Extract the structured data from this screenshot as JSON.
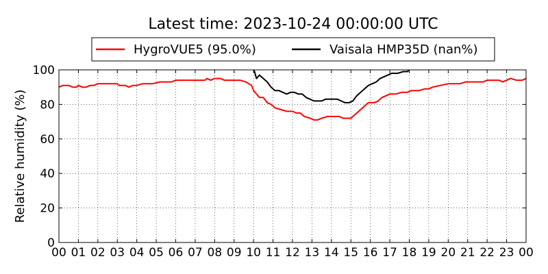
{
  "chart_data": {
    "type": "line",
    "title": "Latest time: 2023-10-24 00:00:00 UTC",
    "xlabel": "",
    "ylabel": "Relative humidity (%)",
    "xlim": [
      0,
      24
    ],
    "ylim": [
      0,
      100
    ],
    "x_ticks": [
      "00",
      "01",
      "02",
      "03",
      "04",
      "05",
      "06",
      "07",
      "08",
      "09",
      "10",
      "11",
      "12",
      "13",
      "14",
      "15",
      "16",
      "17",
      "18",
      "19",
      "20",
      "21",
      "22",
      "23",
      "00"
    ],
    "y_ticks": [
      0,
      20,
      40,
      60,
      80,
      100
    ],
    "grid": true,
    "legend_position": "top",
    "series": [
      {
        "name": "HygroVUE5 (95.0%)",
        "color": "#ff0000",
        "points": [
          [
            0.0,
            90
          ],
          [
            0.2,
            91
          ],
          [
            0.5,
            91
          ],
          [
            0.7,
            90
          ],
          [
            0.9,
            90
          ],
          [
            1.0,
            91
          ],
          [
            1.2,
            90
          ],
          [
            1.4,
            90
          ],
          [
            1.6,
            91
          ],
          [
            1.8,
            91
          ],
          [
            2.0,
            92
          ],
          [
            2.5,
            92
          ],
          [
            3.0,
            92
          ],
          [
            3.1,
            91
          ],
          [
            3.4,
            91
          ],
          [
            3.6,
            90
          ],
          [
            3.8,
            91
          ],
          [
            4.0,
            91
          ],
          [
            4.3,
            92
          ],
          [
            4.8,
            92
          ],
          [
            5.2,
            93
          ],
          [
            5.8,
            93
          ],
          [
            6.0,
            94
          ],
          [
            6.5,
            94
          ],
          [
            7.0,
            94
          ],
          [
            7.5,
            94
          ],
          [
            7.6,
            95
          ],
          [
            7.8,
            94
          ],
          [
            8.0,
            95
          ],
          [
            8.3,
            95
          ],
          [
            8.5,
            94
          ],
          [
            9.0,
            94
          ],
          [
            9.3,
            94
          ],
          [
            9.6,
            93
          ],
          [
            9.9,
            91
          ],
          [
            10.0,
            88
          ],
          [
            10.15,
            86
          ],
          [
            10.3,
            84
          ],
          [
            10.5,
            84
          ],
          [
            10.7,
            81
          ],
          [
            10.9,
            80
          ],
          [
            11.1,
            78
          ],
          [
            11.4,
            77
          ],
          [
            11.7,
            76
          ],
          [
            12.0,
            76
          ],
          [
            12.2,
            75
          ],
          [
            12.4,
            75
          ],
          [
            12.6,
            73
          ],
          [
            12.9,
            72
          ],
          [
            13.1,
            71
          ],
          [
            13.3,
            71
          ],
          [
            13.5,
            72
          ],
          [
            13.8,
            73
          ],
          [
            14.1,
            73
          ],
          [
            14.4,
            73
          ],
          [
            14.6,
            72
          ],
          [
            14.8,
            72
          ],
          [
            15.0,
            72
          ],
          [
            15.1,
            73
          ],
          [
            15.3,
            75
          ],
          [
            15.5,
            77
          ],
          [
            15.7,
            79
          ],
          [
            15.9,
            81
          ],
          [
            16.2,
            81
          ],
          [
            16.4,
            82
          ],
          [
            16.6,
            84
          ],
          [
            16.8,
            85
          ],
          [
            17.0,
            86
          ],
          [
            17.3,
            86
          ],
          [
            17.6,
            87
          ],
          [
            17.9,
            87
          ],
          [
            18.1,
            88
          ],
          [
            18.5,
            88
          ],
          [
            18.8,
            89
          ],
          [
            19.0,
            89
          ],
          [
            19.2,
            90
          ],
          [
            19.6,
            91
          ],
          [
            20.0,
            92
          ],
          [
            20.3,
            92
          ],
          [
            20.6,
            92
          ],
          [
            20.9,
            93
          ],
          [
            21.2,
            93
          ],
          [
            21.5,
            93
          ],
          [
            21.8,
            93
          ],
          [
            22.0,
            94
          ],
          [
            22.3,
            94
          ],
          [
            22.6,
            94
          ],
          [
            22.8,
            93
          ],
          [
            23.0,
            94
          ],
          [
            23.2,
            95
          ],
          [
            23.5,
            94
          ],
          [
            23.8,
            94
          ],
          [
            24.0,
            95
          ]
        ]
      },
      {
        "name": "Vaisala HMP35D (nan%)",
        "color": "#000000",
        "points": [
          [
            10.0,
            100
          ],
          [
            10.05,
            99
          ],
          [
            10.15,
            95
          ],
          [
            10.3,
            97
          ],
          [
            10.5,
            95
          ],
          [
            10.7,
            93
          ],
          [
            10.9,
            90
          ],
          [
            11.1,
            88
          ],
          [
            11.3,
            88
          ],
          [
            11.5,
            87
          ],
          [
            11.7,
            86
          ],
          [
            11.9,
            87
          ],
          [
            12.1,
            87
          ],
          [
            12.3,
            86
          ],
          [
            12.5,
            86
          ],
          [
            12.7,
            84
          ],
          [
            12.9,
            83
          ],
          [
            13.1,
            82
          ],
          [
            13.3,
            82
          ],
          [
            13.5,
            82
          ],
          [
            13.7,
            83
          ],
          [
            13.9,
            83
          ],
          [
            14.1,
            83
          ],
          [
            14.3,
            83
          ],
          [
            14.5,
            82
          ],
          [
            14.7,
            81
          ],
          [
            14.9,
            81
          ],
          [
            15.1,
            82
          ],
          [
            15.3,
            85
          ],
          [
            15.5,
            87
          ],
          [
            15.7,
            89
          ],
          [
            15.9,
            91
          ],
          [
            16.1,
            92
          ],
          [
            16.3,
            93
          ],
          [
            16.5,
            95
          ],
          [
            16.7,
            96
          ],
          [
            16.9,
            97
          ],
          [
            17.1,
            98
          ],
          [
            17.4,
            98
          ],
          [
            17.7,
            99
          ],
          [
            17.9,
            99
          ],
          [
            18.0,
            100
          ]
        ]
      }
    ]
  }
}
